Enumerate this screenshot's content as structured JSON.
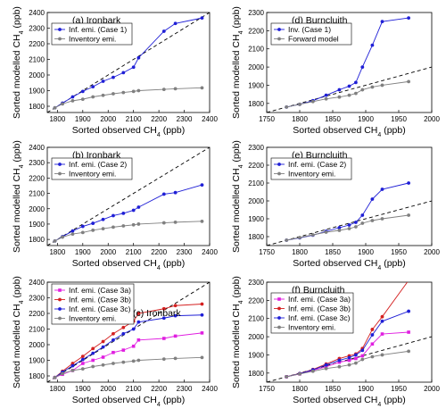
{
  "colors": {
    "inferred": "#1f1fd6",
    "inventory": "#808080",
    "case3a": "#e01fe0",
    "case3b": "#d42020",
    "case3c": "#1f1fd6",
    "one_to_one": "#000000"
  },
  "chart_data": [
    {
      "type": "line",
      "title": "(a) Ironbark",
      "xlabel": "Sorted observed CH4 (ppb)",
      "ylabel": "Sorted modelled CH4 (ppb)",
      "xlim": [
        1760,
        2400
      ],
      "ylim": [
        1760,
        2400
      ],
      "xticks": [
        1800,
        1900,
        2000,
        2100,
        2200,
        2300,
        2400
      ],
      "yticks": [
        1800,
        1900,
        2000,
        2100,
        2200,
        2300,
        2400
      ],
      "one_to_one_line": true,
      "legend_position": "top-left",
      "series": [
        {
          "name": "Inf. emi. (Case 1)",
          "color_key": "inferred",
          "marker": "circle",
          "x": [
            1790,
            1820,
            1860,
            1900,
            1940,
            1980,
            2020,
            2060,
            2100,
            2120,
            2220,
            2265,
            2370
          ],
          "y": [
            1790,
            1820,
            1860,
            1895,
            1925,
            1960,
            1985,
            2015,
            2050,
            2110,
            2280,
            2330,
            2365
          ]
        },
        {
          "name": "Inventory emi.",
          "color_key": "inventory",
          "marker": "circle",
          "x": [
            1790,
            1820,
            1860,
            1900,
            1940,
            1980,
            2020,
            2060,
            2100,
            2120,
            2220,
            2265,
            2370
          ],
          "y": [
            1790,
            1815,
            1835,
            1845,
            1860,
            1870,
            1880,
            1888,
            1895,
            1900,
            1908,
            1912,
            1918
          ]
        }
      ]
    },
    {
      "type": "line",
      "title": "(d) Burncluith",
      "xlabel": "Sorted observed CH4 (ppb)",
      "ylabel": "Sorted modelled CH4 (ppb)",
      "xlim": [
        1750,
        2000
      ],
      "ylim": [
        1750,
        2300
      ],
      "xticks": [
        1750,
        1800,
        1850,
        1900,
        1950,
        2000
      ],
      "yticks": [
        1800,
        1900,
        2000,
        2100,
        2200,
        2300
      ],
      "one_to_one_line": true,
      "legend_position": "top-left",
      "series": [
        {
          "name": "Inv. (Case 1)",
          "color_key": "inferred",
          "marker": "circle",
          "x": [
            1780,
            1800,
            1820,
            1840,
            1860,
            1875,
            1885,
            1895,
            1910,
            1925,
            1965
          ],
          "y": [
            1780,
            1795,
            1815,
            1845,
            1875,
            1895,
            1915,
            2000,
            2120,
            2250,
            2270
          ]
        },
        {
          "name": "Forward model",
          "color_key": "inventory",
          "marker": "circle",
          "x": [
            1780,
            1800,
            1820,
            1840,
            1860,
            1875,
            1885,
            1895,
            1910,
            1925,
            1965
          ],
          "y": [
            1780,
            1795,
            1810,
            1825,
            1835,
            1845,
            1855,
            1875,
            1890,
            1900,
            1920
          ]
        }
      ]
    },
    {
      "type": "line",
      "title": "(b) Ironbark",
      "xlabel": "Sorted observed CH4 (ppb)",
      "ylabel": "Sorted modelled CH4 (ppb)",
      "xlim": [
        1760,
        2400
      ],
      "ylim": [
        1760,
        2400
      ],
      "xticks": [
        1800,
        1900,
        2000,
        2100,
        2200,
        2300,
        2400
      ],
      "yticks": [
        1800,
        1900,
        2000,
        2100,
        2200,
        2300,
        2400
      ],
      "one_to_one_line": true,
      "legend_position": "top-left",
      "series": [
        {
          "name": "Inf. emi. (Case 2)",
          "color_key": "inferred",
          "marker": "circle",
          "x": [
            1790,
            1820,
            1860,
            1900,
            1940,
            1980,
            2020,
            2060,
            2100,
            2120,
            2220,
            2265,
            2370
          ],
          "y": [
            1790,
            1818,
            1855,
            1885,
            1905,
            1930,
            1955,
            1970,
            1990,
            2010,
            2095,
            2105,
            2155
          ]
        },
        {
          "name": "Inventory emi.",
          "color_key": "inventory",
          "marker": "circle",
          "x": [
            1790,
            1820,
            1860,
            1900,
            1940,
            1980,
            2020,
            2060,
            2100,
            2120,
            2220,
            2265,
            2370
          ],
          "y": [
            1790,
            1815,
            1835,
            1845,
            1860,
            1870,
            1880,
            1888,
            1895,
            1900,
            1908,
            1912,
            1918
          ]
        }
      ]
    },
    {
      "type": "line",
      "title": "(e) Burncluith",
      "xlabel": "Sorted observed CH4 (ppb)",
      "ylabel": "Sorted modelled CH4 (ppb)",
      "xlim": [
        1750,
        2000
      ],
      "ylim": [
        1750,
        2300
      ],
      "xticks": [
        1750,
        1800,
        1850,
        1900,
        1950,
        2000
      ],
      "yticks": [
        1800,
        1900,
        2000,
        2100,
        2200,
        2300
      ],
      "one_to_one_line": true,
      "legend_position": "top-left",
      "series": [
        {
          "name": "Inf. emi. (Case 2)",
          "color_key": "inferred",
          "marker": "circle",
          "x": [
            1780,
            1800,
            1820,
            1840,
            1860,
            1875,
            1885,
            1895,
            1910,
            1925,
            1965
          ],
          "y": [
            1780,
            1793,
            1808,
            1830,
            1850,
            1865,
            1880,
            1920,
            2010,
            2065,
            2100
          ]
        },
        {
          "name": "Inventory emi.",
          "color_key": "inventory",
          "marker": "circle",
          "x": [
            1780,
            1800,
            1820,
            1840,
            1860,
            1875,
            1885,
            1895,
            1910,
            1925,
            1965
          ],
          "y": [
            1780,
            1795,
            1810,
            1825,
            1835,
            1845,
            1855,
            1875,
            1890,
            1900,
            1920
          ]
        }
      ]
    },
    {
      "type": "line",
      "title": "(c) Ironbark",
      "xlabel": "Sorted observed CH4 (ppb)",
      "ylabel": "Sorted modelled CH4 (ppb)",
      "xlim": [
        1760,
        2400
      ],
      "ylim": [
        1760,
        2400
      ],
      "xticks": [
        1800,
        1900,
        2000,
        2100,
        2200,
        2300,
        2400
      ],
      "yticks": [
        1800,
        1900,
        2000,
        2100,
        2200,
        2300,
        2400
      ],
      "one_to_one_line": true,
      "legend_position": "top-left",
      "series": [
        {
          "name": "Inf. emi. (Case 3a)",
          "color_key": "case3a",
          "marker": "square",
          "x": [
            1790,
            1820,
            1860,
            1900,
            1940,
            1980,
            2020,
            2060,
            2100,
            2120,
            2220,
            2265,
            2370
          ],
          "y": [
            1790,
            1810,
            1835,
            1880,
            1900,
            1920,
            1950,
            1965,
            1990,
            2030,
            2040,
            2055,
            2075
          ]
        },
        {
          "name": "Inf. emi. (Case 3b)",
          "color_key": "case3b",
          "marker": "circle",
          "x": [
            1790,
            1820,
            1860,
            1900,
            1940,
            1980,
            2020,
            2060,
            2100,
            2120,
            2220,
            2265,
            2370
          ],
          "y": [
            1790,
            1830,
            1880,
            1925,
            1975,
            2020,
            2070,
            2110,
            2150,
            2200,
            2230,
            2250,
            2260
          ]
        },
        {
          "name": "Inf. emi. (Case 3c)",
          "color_key": "case3c",
          "marker": "circle",
          "x": [
            1790,
            1820,
            1860,
            1900,
            1940,
            1980,
            2020,
            2060,
            2100,
            2120,
            2220,
            2265,
            2370
          ],
          "y": [
            1790,
            1825,
            1865,
            1905,
            1945,
            1985,
            2030,
            2070,
            2100,
            2145,
            2170,
            2185,
            2190
          ]
        },
        {
          "name": "Inventory emi.",
          "color_key": "inventory",
          "marker": "circle",
          "x": [
            1790,
            1820,
            1860,
            1900,
            1940,
            1980,
            2020,
            2060,
            2100,
            2120,
            2220,
            2265,
            2370
          ],
          "y": [
            1790,
            1815,
            1835,
            1845,
            1860,
            1870,
            1880,
            1888,
            1895,
            1900,
            1908,
            1912,
            1918
          ]
        }
      ]
    },
    {
      "type": "line",
      "title": "(f) Burncluith",
      "xlabel": "Sorted observed CH4 (ppb)",
      "ylabel": "Sorted modelled CH4 (ppb)",
      "xlim": [
        1750,
        2000
      ],
      "ylim": [
        1750,
        2300
      ],
      "xticks": [
        1750,
        1800,
        1850,
        1900,
        1950,
        2000
      ],
      "yticks": [
        1800,
        1900,
        2000,
        2100,
        2200,
        2300
      ],
      "one_to_one_line": true,
      "legend_position": "top-left",
      "series": [
        {
          "name": "Inf. emi. (Case 3a)",
          "color_key": "case3a",
          "marker": "square",
          "x": [
            1780,
            1800,
            1820,
            1840,
            1860,
            1875,
            1885,
            1895,
            1910,
            1925,
            1965
          ],
          "y": [
            1780,
            1795,
            1815,
            1835,
            1860,
            1870,
            1880,
            1895,
            1960,
            2015,
            2025
          ]
        },
        {
          "name": "Inf. emi. (Case 3b)",
          "color_key": "case3b",
          "marker": "circle",
          "x": [
            1780,
            1800,
            1820,
            1840,
            1860,
            1875,
            1885,
            1895,
            1910,
            1925,
            1965
          ],
          "y": [
            1780,
            1798,
            1820,
            1850,
            1880,
            1895,
            1905,
            1935,
            2040,
            2110,
            2310
          ]
        },
        {
          "name": "Inf. emi. (Case 3c)",
          "color_key": "case3c",
          "marker": "circle",
          "x": [
            1780,
            1800,
            1820,
            1840,
            1860,
            1875,
            1885,
            1895,
            1910,
            1925,
            1965
          ],
          "y": [
            1780,
            1797,
            1818,
            1845,
            1870,
            1885,
            1900,
            1925,
            2010,
            2085,
            2140
          ]
        },
        {
          "name": "Inventory emi.",
          "color_key": "inventory",
          "marker": "circle",
          "x": [
            1780,
            1800,
            1820,
            1840,
            1860,
            1875,
            1885,
            1895,
            1910,
            1925,
            1965
          ],
          "y": [
            1780,
            1795,
            1810,
            1825,
            1835,
            1845,
            1855,
            1875,
            1890,
            1900,
            1920
          ]
        }
      ]
    }
  ]
}
